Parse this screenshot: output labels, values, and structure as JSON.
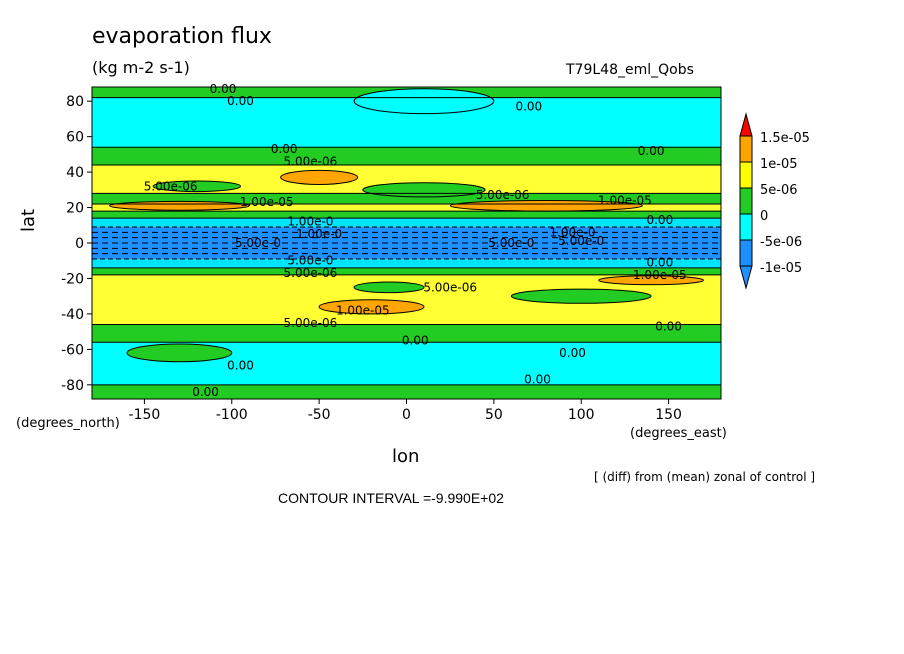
{
  "header": {
    "title": "evaporation flux",
    "units": "(kg m-2 s-1)",
    "run_id": "T79L48_eml_Qobs"
  },
  "footer": {
    "contour_interval": "CONTOUR INTERVAL =-9.990E+02",
    "note": "[ (diff) from (mean) zonal of control ]"
  },
  "chart_data": {
    "type": "heatmap",
    "title": "evaporation flux",
    "xlabel": "lon",
    "ylabel": "lat",
    "x_unit_label": "(degrees_east)",
    "y_unit_label": "(degrees_north)",
    "xlim": [
      -180,
      180
    ],
    "ylim": [
      -88,
      88
    ],
    "x_ticks": [
      -150,
      -100,
      -50,
      0,
      50,
      100,
      150
    ],
    "y_ticks": [
      -80,
      -60,
      -40,
      -20,
      0,
      20,
      40,
      60,
      80
    ],
    "colorbar": {
      "labels": [
        "1.5e-05",
        "1e-05",
        "5e-06",
        "0",
        "-5e-06",
        "-1e-05"
      ],
      "colors": [
        "#1e90ff",
        "#00e5ff",
        "#22cc22",
        "#ffff00",
        "#ffa500",
        "#ff0000"
      ]
    },
    "bands": [
      {
        "lat_from": 90,
        "lat_to": 82,
        "color": "#22cc22"
      },
      {
        "lat_from": 82,
        "lat_to": 54,
        "color": "#00ffff"
      },
      {
        "lat_from": 54,
        "lat_to": 44,
        "color": "#22cc22"
      },
      {
        "lat_from": 44,
        "lat_to": 28,
        "color": "#ffff33"
      },
      {
        "lat_from": 28,
        "lat_to": 22,
        "color": "#22cc22"
      },
      {
        "lat_from": 22,
        "lat_to": 18,
        "color": "#ffff33"
      },
      {
        "lat_from": 18,
        "lat_to": 14,
        "color": "#22cc22"
      },
      {
        "lat_from": 14,
        "lat_to": 9,
        "color": "#00e5ff"
      },
      {
        "lat_from": 9,
        "lat_to": -9,
        "color": "#1e90ff"
      },
      {
        "lat_from": -9,
        "lat_to": -14,
        "color": "#00e5ff"
      },
      {
        "lat_from": -14,
        "lat_to": -18,
        "color": "#22cc22"
      },
      {
        "lat_from": -18,
        "lat_to": -46,
        "color": "#ffff33"
      },
      {
        "lat_from": -46,
        "lat_to": -56,
        "color": "#22cc22"
      },
      {
        "lat_from": -56,
        "lat_to": -80,
        "color": "#00ffff"
      },
      {
        "lat_from": -80,
        "lat_to": -90,
        "color": "#22cc22"
      }
    ],
    "blobs": [
      {
        "lon": -50,
        "lat": 37,
        "rx": 22,
        "ry": 4,
        "color": "#ffa500"
      },
      {
        "lon": 80,
        "lat": 21,
        "rx": 55,
        "ry": 3,
        "color": "#ffa500"
      },
      {
        "lon": -130,
        "lat": 21,
        "rx": 40,
        "ry": 2.5,
        "color": "#ffa500"
      },
      {
        "lon": -20,
        "lat": -36,
        "rx": 30,
        "ry": 4,
        "color": "#ffa500"
      },
      {
        "lon": 140,
        "lat": -21,
        "rx": 30,
        "ry": 2.5,
        "color": "#ffa500"
      },
      {
        "lon": 10,
        "lat": 30,
        "rx": 35,
        "ry": 4,
        "color": "#22cc22"
      },
      {
        "lon": -120,
        "lat": 32,
        "rx": 25,
        "ry": 3,
        "color": "#22cc22"
      },
      {
        "lon": -10,
        "lat": -25,
        "rx": 20,
        "ry": 3,
        "color": "#22cc22"
      },
      {
        "lon": 100,
        "lat": -30,
        "rx": 40,
        "ry": 4,
        "color": "#22cc22"
      },
      {
        "lon": -130,
        "lat": -62,
        "rx": 30,
        "ry": 5,
        "color": "#22cc22"
      },
      {
        "lon": 10,
        "lat": 80,
        "rx": 40,
        "ry": 7,
        "color": "#00ffff"
      }
    ],
    "contour_labels": [
      {
        "lon": -105,
        "lat": 87,
        "text": "0.00"
      },
      {
        "lon": -95,
        "lat": 80,
        "text": "0.00"
      },
      {
        "lon": 70,
        "lat": 77,
        "text": "0.00"
      },
      {
        "lon": -70,
        "lat": 53,
        "text": "0.00"
      },
      {
        "lon": 140,
        "lat": 52,
        "text": "0.00"
      },
      {
        "lon": -55,
        "lat": 46,
        "text": "5.00e-06"
      },
      {
        "lon": -135,
        "lat": 32,
        "text": "5.00e-06"
      },
      {
        "lon": 55,
        "lat": 27,
        "text": "5.00e-06"
      },
      {
        "lon": -80,
        "lat": 23,
        "text": "1.00e-05"
      },
      {
        "lon": 125,
        "lat": 24,
        "text": "1.00e-05"
      },
      {
        "lon": -55,
        "lat": 12,
        "text": "1.00e-0"
      },
      {
        "lon": -50,
        "lat": 5,
        "text": "1.00e-0"
      },
      {
        "lon": -85,
        "lat": 0,
        "text": "5.00e-0"
      },
      {
        "lon": 60,
        "lat": 0,
        "text": "5.00e-0"
      },
      {
        "lon": 100,
        "lat": 1,
        "text": "5.00e-0"
      },
      {
        "lon": 95,
        "lat": 6,
        "text": "1.00e-0"
      },
      {
        "lon": 145,
        "lat": 13,
        "text": "0.00"
      },
      {
        "lon": -55,
        "lat": -10,
        "text": "5.00e-0"
      },
      {
        "lon": -55,
        "lat": -17,
        "text": "5.00e-06"
      },
      {
        "lon": 145,
        "lat": -18,
        "text": "1.00e-05"
      },
      {
        "lon": 145,
        "lat": -11,
        "text": "0.00"
      },
      {
        "lon": 25,
        "lat": -25,
        "text": "5.00e-06"
      },
      {
        "lon": -25,
        "lat": -38,
        "text": "1.00e-05"
      },
      {
        "lon": -55,
        "lat": -45,
        "text": "5.00e-06"
      },
      {
        "lon": 150,
        "lat": -47,
        "text": "0.00"
      },
      {
        "lon": 5,
        "lat": -55,
        "text": "0.00"
      },
      {
        "lon": 95,
        "lat": -62,
        "text": "0.00"
      },
      {
        "lon": -95,
        "lat": -69,
        "text": "0.00"
      },
      {
        "lon": 75,
        "lat": -77,
        "text": "0.00"
      },
      {
        "lon": -115,
        "lat": -84,
        "text": "0.00"
      }
    ]
  }
}
